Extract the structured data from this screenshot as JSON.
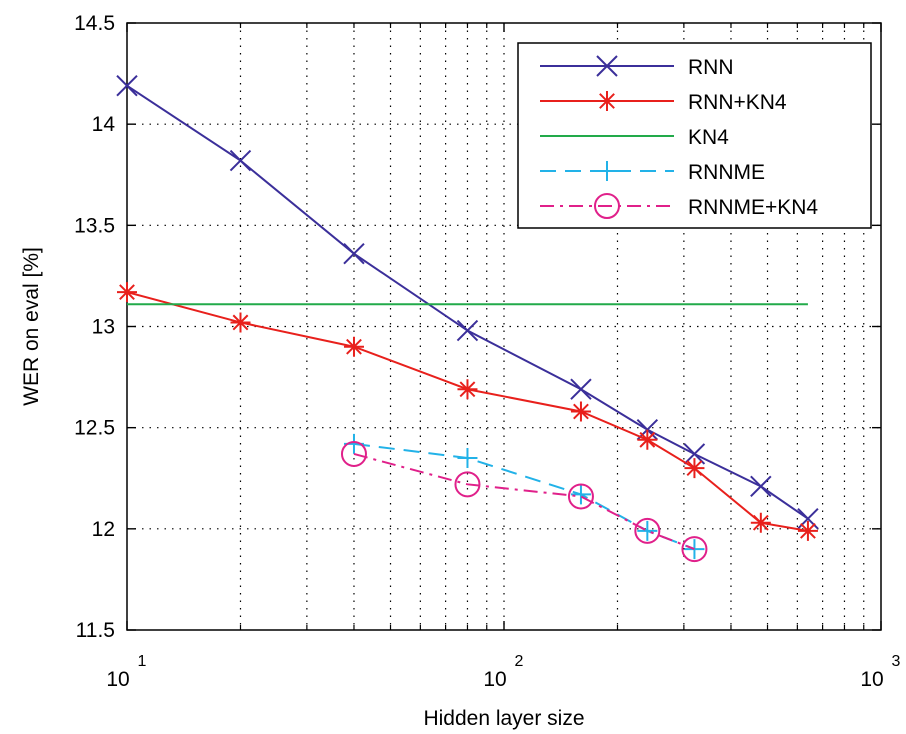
{
  "chart_data": {
    "type": "line",
    "title": "",
    "xlabel": "Hidden layer size",
    "ylabel": "WER on eval [%]",
    "x_scale": "log",
    "xlim": [
      10,
      1000
    ],
    "ylim": [
      11.5,
      14.5
    ],
    "x_ticks": [
      {
        "value": 10,
        "base": "10",
        "exp": "1"
      },
      {
        "value": 100,
        "base": "10",
        "exp": "2"
      },
      {
        "value": 1000,
        "base": "10",
        "exp": "3"
      }
    ],
    "y_ticks": [
      "11.5",
      "12",
      "12.5",
      "13",
      "13.5",
      "14",
      "14.5"
    ],
    "grid": true,
    "legend_position": "top-right",
    "series": [
      {
        "name": "RNN",
        "color": "#3b2f9a",
        "marker": "x",
        "dash": "solid",
        "points": [
          [
            10,
            14.19
          ],
          [
            20,
            13.82
          ],
          [
            40,
            13.36
          ],
          [
            80,
            12.98
          ],
          [
            160,
            12.69
          ],
          [
            240,
            12.49
          ],
          [
            320,
            12.37
          ],
          [
            480,
            12.21
          ],
          [
            640,
            12.05
          ]
        ]
      },
      {
        "name": "RNN+KN4",
        "color": "#e8201c",
        "marker": "asterisk",
        "dash": "solid",
        "points": [
          [
            10,
            13.17
          ],
          [
            20,
            13.02
          ],
          [
            40,
            12.9
          ],
          [
            80,
            12.69
          ],
          [
            160,
            12.58
          ],
          [
            240,
            12.44
          ],
          [
            320,
            12.3
          ],
          [
            480,
            12.03
          ],
          [
            640,
            11.99
          ]
        ]
      },
      {
        "name": "KN4",
        "color": "#22aa4a",
        "marker": "none",
        "dash": "solid",
        "points": [
          [
            10,
            13.11
          ],
          [
            640,
            13.11
          ]
        ]
      },
      {
        "name": "RNNME",
        "color": "#22b2e8",
        "marker": "plus",
        "dash": "dashed",
        "points": [
          [
            40,
            12.42
          ],
          [
            80,
            12.35
          ],
          [
            160,
            12.17
          ],
          [
            240,
            11.99
          ],
          [
            320,
            11.9
          ]
        ]
      },
      {
        "name": "RNNME+KN4",
        "color": "#e0208a",
        "marker": "circle",
        "dash": "dashdot",
        "points": [
          [
            40,
            12.37
          ],
          [
            80,
            12.22
          ],
          [
            160,
            12.16
          ],
          [
            240,
            11.99
          ],
          [
            320,
            11.9
          ]
        ]
      }
    ]
  }
}
